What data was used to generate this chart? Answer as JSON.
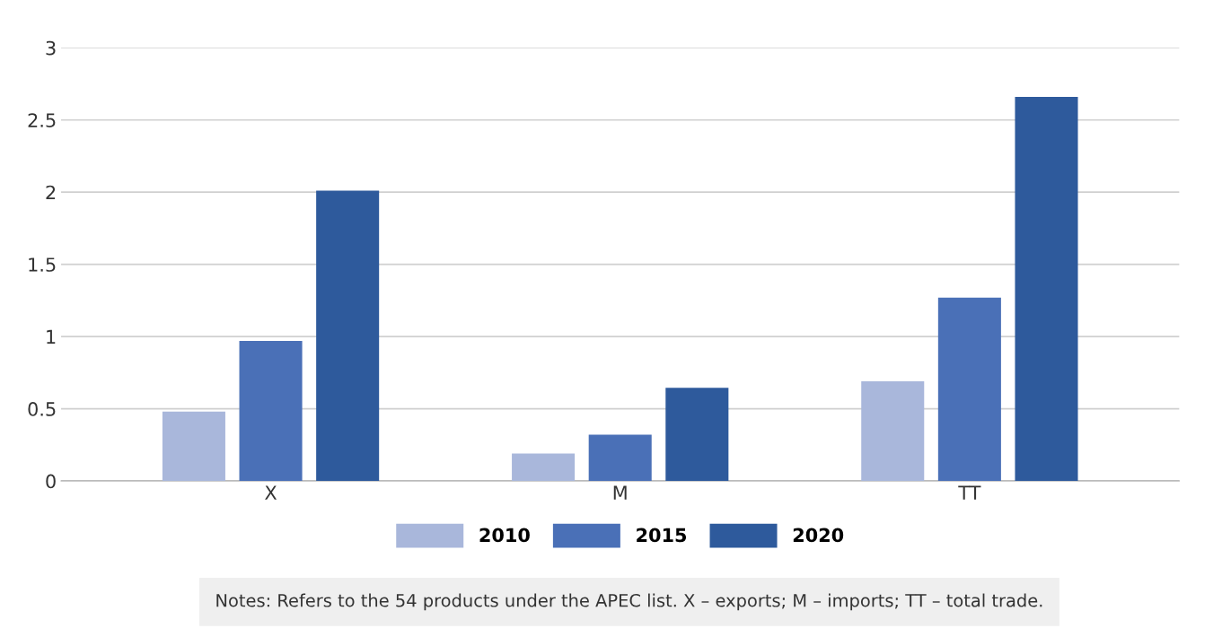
{
  "chart_data": {
    "type": "bar",
    "categories": [
      "X",
      "M",
      "TT"
    ],
    "series": [
      {
        "name": "2010",
        "color": "#a9b7db",
        "values": [
          0.48,
          0.19,
          0.69
        ]
      },
      {
        "name": "2015",
        "color": "#4a70b7",
        "values": [
          0.97,
          0.32,
          1.27
        ]
      },
      {
        "name": "2020",
        "color": "#2e5a9c",
        "values": [
          2.01,
          0.645,
          2.66
        ]
      }
    ],
    "ylim": [
      0,
      3
    ],
    "yticks": [
      0,
      0.5,
      1,
      1.5,
      2,
      2.5,
      3
    ],
    "grid": "y",
    "legend": "bottom",
    "annotations": [
      "Notes: Refers to the 54 products under the APEC list. X – exports; M – imports; TT – total trade."
    ]
  }
}
